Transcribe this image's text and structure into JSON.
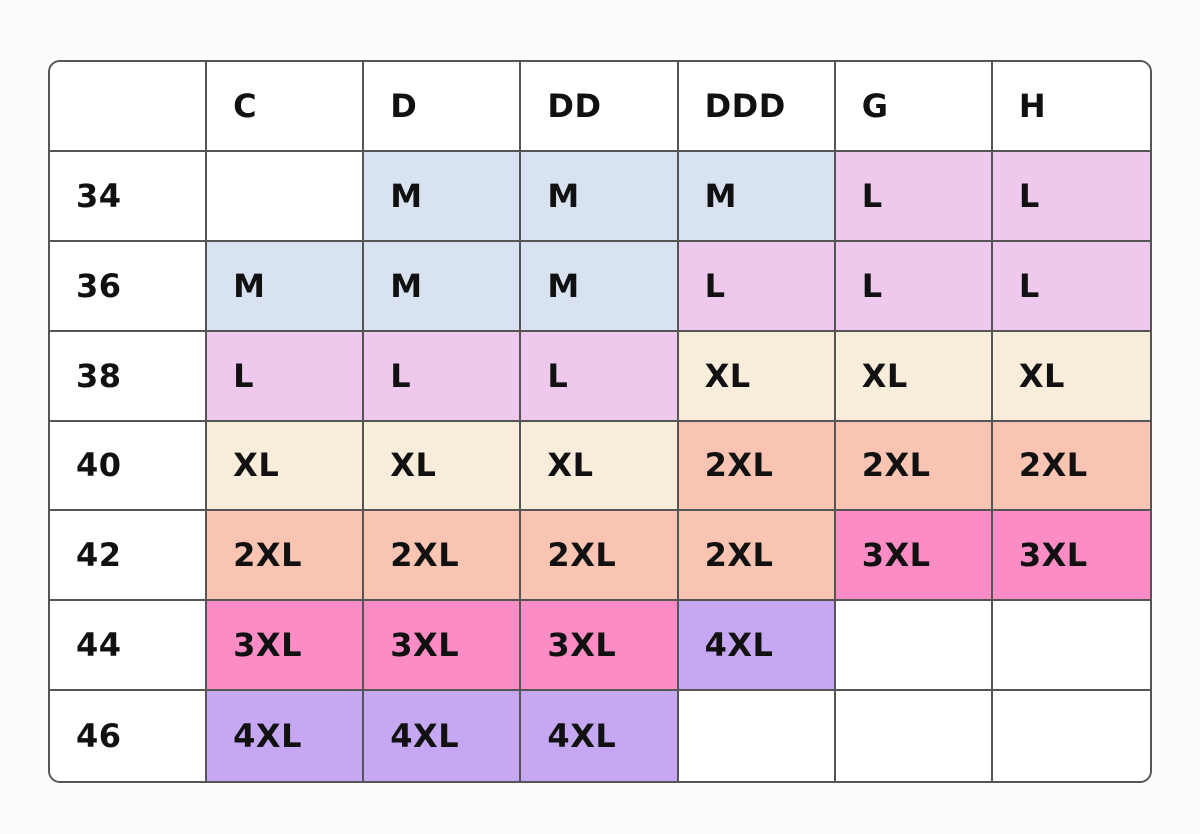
{
  "page": {
    "background_color": "#fcfbf9"
  },
  "table": {
    "description": "band-size by cup-size to garment-size conversion chart",
    "border_color": "#555555",
    "text_color": "#111111",
    "column_headers": [
      "",
      "C",
      "D",
      "DD",
      "DDD",
      "G",
      "H"
    ],
    "row_headers": [
      "34",
      "36",
      "38",
      "40",
      "42",
      "44",
      "46"
    ],
    "cells": [
      [
        "",
        "M",
        "M",
        "M",
        "L",
        "L"
      ],
      [
        "M",
        "M",
        "M",
        "L",
        "L",
        "L"
      ],
      [
        "L",
        "L",
        "L",
        "XL",
        "XL",
        "XL"
      ],
      [
        "XL",
        "XL",
        "XL",
        "2XL",
        "2XL",
        "2XL"
      ],
      [
        "2XL",
        "2XL",
        "2XL",
        "2XL",
        "3XL",
        "3XL"
      ],
      [
        "3XL",
        "3XL",
        "3XL",
        "4XL",
        "",
        ""
      ],
      [
        "4XL",
        "4XL",
        "4XL",
        "",
        "",
        ""
      ]
    ],
    "size_colors": {
      "M": "#d8e2f1",
      "L": "#eec8ed",
      "XL": "#f8ecdb",
      "2XL": "#fac4b3",
      "3XL": "#fc8cc5",
      "4XL": "#c6a8f2"
    },
    "empty_cell_color": "#ffffff"
  }
}
